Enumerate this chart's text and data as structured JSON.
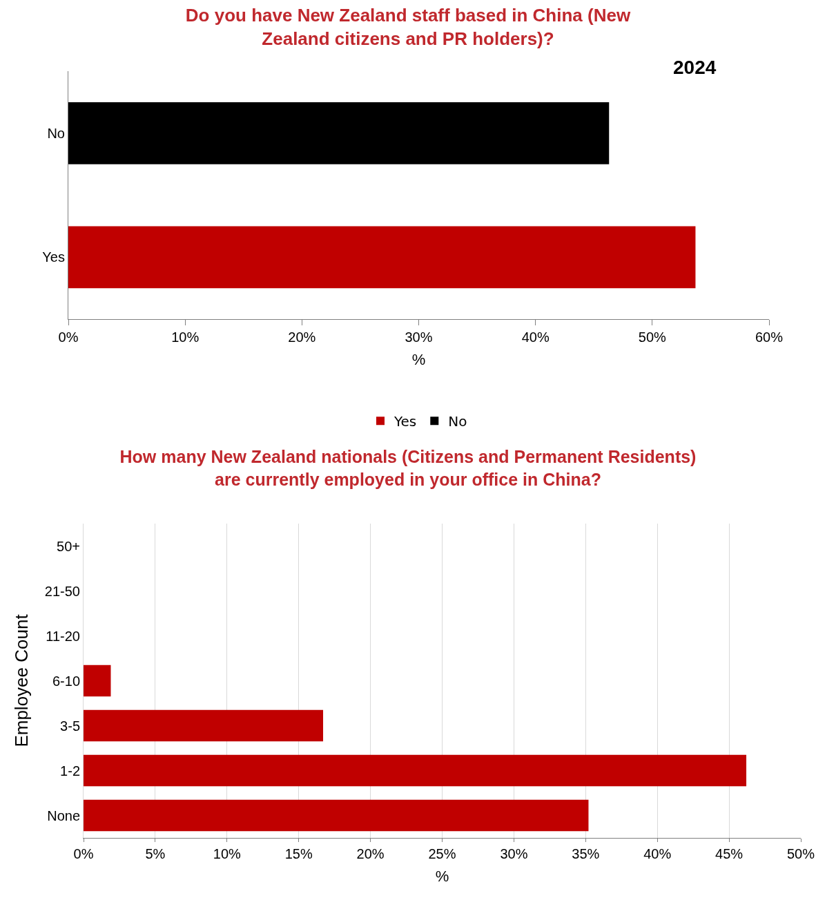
{
  "chart_data": [
    {
      "type": "bar",
      "orientation": "horizontal",
      "title": "Do you have New Zealand staff based in China (New Zealand citizens and PR holders)?",
      "xlabel": "%",
      "categories": [
        "No",
        "Yes"
      ],
      "series": [
        {
          "name": "Yes",
          "color": "#c00000",
          "values": [
            null,
            53.7
          ]
        },
        {
          "name": "No",
          "color": "#000000",
          "values": [
            46.3,
            null
          ]
        }
      ],
      "xlim": [
        0,
        60
      ],
      "xticks": [
        {
          "value": 0,
          "label": "0%"
        },
        {
          "value": 10,
          "label": "10%"
        },
        {
          "value": 20,
          "label": "20%"
        },
        {
          "value": 30,
          "label": "30%"
        },
        {
          "value": 40,
          "label": "40%"
        },
        {
          "value": 50,
          "label": "50%"
        },
        {
          "value": 60,
          "label": "60%"
        }
      ],
      "grid": false,
      "legend": "bottom",
      "annotations": [
        "2024"
      ]
    },
    {
      "type": "bar",
      "orientation": "horizontal",
      "title": "How many New Zealand nationals (Citizens and Permanent Residents) are currently employed in your office in China?",
      "xlabel": "%",
      "ylabel": "Employee Count",
      "categories": [
        "50+",
        "21-50",
        "11-20",
        "6-10",
        "3-5",
        "1-2",
        "None"
      ],
      "values": [
        0,
        0,
        0,
        1.9,
        16.7,
        46.2,
        35.2
      ],
      "color": "#c00000",
      "xlim": [
        0,
        50
      ],
      "xticks": [
        {
          "value": 0,
          "label": "0%"
        },
        {
          "value": 5,
          "label": "5%"
        },
        {
          "value": 10,
          "label": "10%"
        },
        {
          "value": 15,
          "label": "15%"
        },
        {
          "value": 20,
          "label": "20%"
        },
        {
          "value": 25,
          "label": "25%"
        },
        {
          "value": 30,
          "label": "30%"
        },
        {
          "value": 35,
          "label": "35%"
        },
        {
          "value": 40,
          "label": "40%"
        },
        {
          "value": 45,
          "label": "45%"
        },
        {
          "value": 50,
          "label": "50%"
        }
      ],
      "grid": "x",
      "legend": false
    }
  ]
}
